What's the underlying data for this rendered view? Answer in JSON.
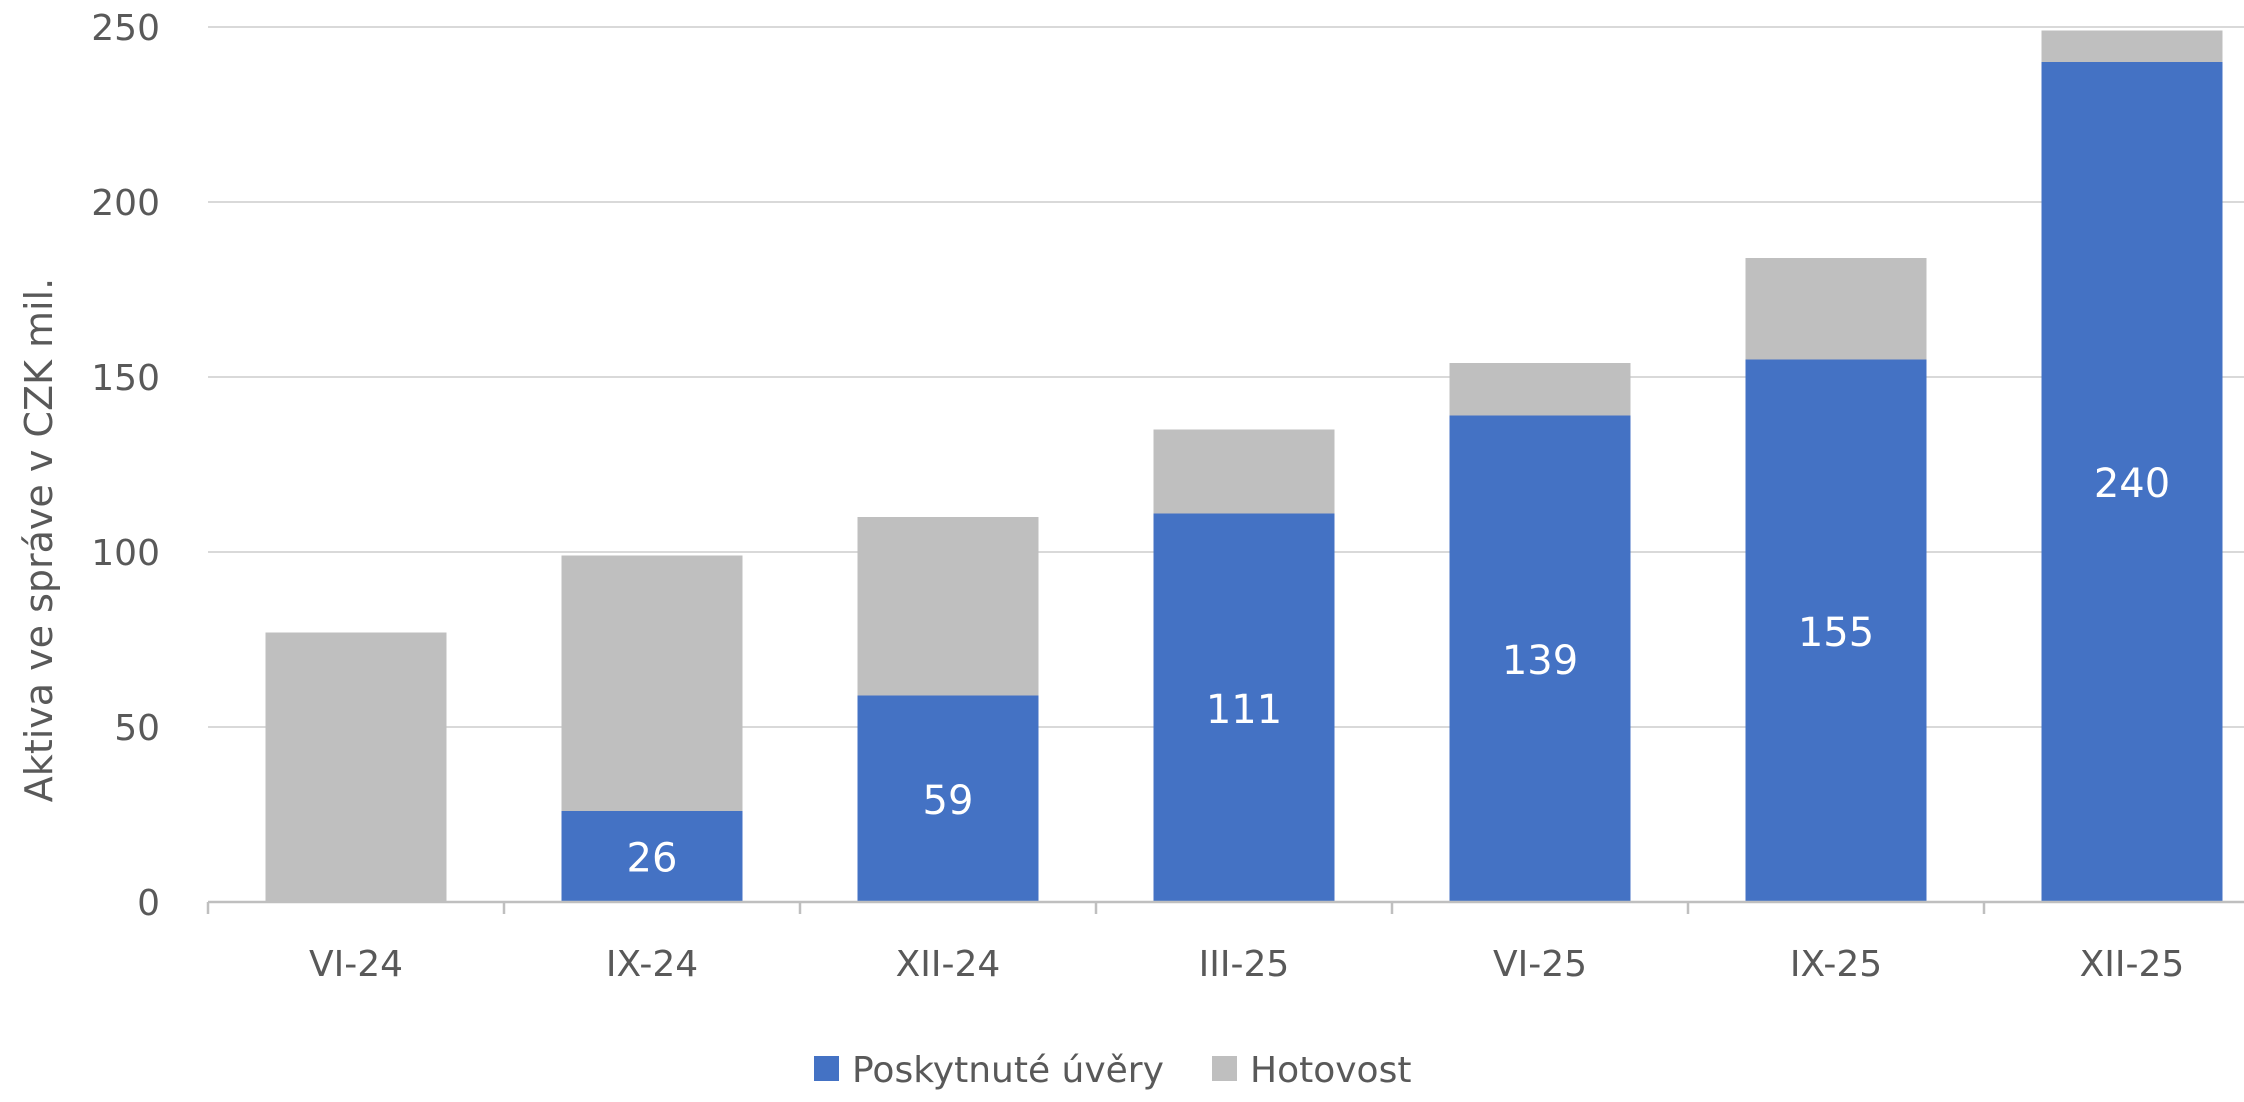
{
  "chart_data": {
    "type": "bar",
    "stacked": true,
    "ylabel": "Aktiva ve správe v CZK mil.",
    "ylim": [
      0,
      250
    ],
    "yticks": [
      0,
      50,
      100,
      150,
      200,
      250
    ],
    "categories": [
      "VI-24",
      "IX-24",
      "XII-24",
      "III-25",
      "VI-25",
      "IX-25",
      "XII-25"
    ],
    "series": [
      {
        "name": "Poskytnuté úvěry",
        "color": "#4472C4",
        "values": [
          0,
          26,
          59,
          111,
          139,
          155,
          240
        ],
        "data_labels": [
          "",
          "26",
          "59",
          "111",
          "139",
          "155",
          "240"
        ]
      },
      {
        "name": "Hotovost",
        "color": "#BFBFBF",
        "values": [
          77,
          73,
          51,
          24,
          15,
          29,
          9
        ]
      }
    ],
    "grid": true,
    "legend_position": "bottom"
  }
}
